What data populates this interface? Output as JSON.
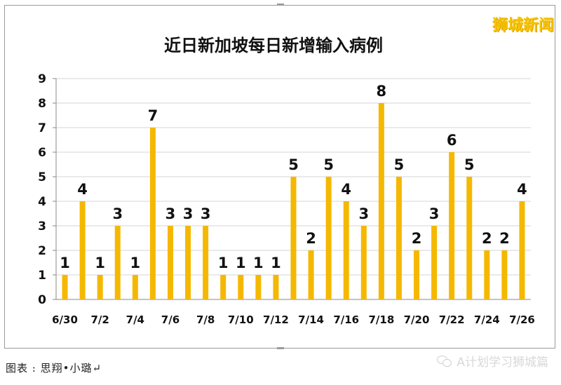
{
  "watermark": "狮城新闻",
  "credit": "图表 : 思翔•小璐↵",
  "source": "A计划学习狮城篇",
  "chart_data": {
    "type": "bar",
    "title": "近日新加坡每日新增输入病例",
    "categories": [
      "6/30",
      "7/1",
      "7/2",
      "7/3",
      "7/4",
      "7/5",
      "7/6",
      "7/7",
      "7/8",
      "7/9",
      "7/10",
      "7/11",
      "7/12",
      "7/13",
      "7/14",
      "7/15",
      "7/16",
      "7/17",
      "7/18",
      "7/19",
      "7/20",
      "7/21",
      "7/22",
      "7/23",
      "7/24",
      "7/25",
      "7/26"
    ],
    "tick_labels": [
      "6/30",
      "7/2",
      "7/4",
      "7/6",
      "7/8",
      "7/10",
      "7/12",
      "7/14",
      "7/16",
      "7/18",
      "7/20",
      "7/22",
      "7/24",
      "7/26"
    ],
    "values": [
      1,
      4,
      1,
      3,
      1,
      7,
      3,
      3,
      3,
      1,
      1,
      1,
      1,
      5,
      2,
      5,
      4,
      3,
      8,
      5,
      2,
      3,
      6,
      5,
      2,
      2,
      4
    ],
    "ylim": [
      0,
      9
    ],
    "yticks": [
      0,
      1,
      2,
      3,
      4,
      5,
      6,
      7,
      8,
      9
    ],
    "grid": true,
    "legend": "none",
    "bar_color": "#f5b800",
    "grid_color": "#d4d4d4"
  }
}
